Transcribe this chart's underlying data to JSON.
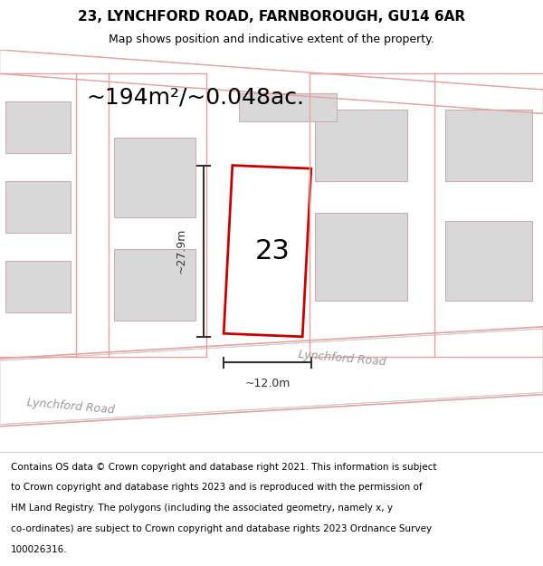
{
  "title": "23, LYNCHFORD ROAD, FARNBOROUGH, GU14 6AR",
  "subtitle": "Map shows position and indicative extent of the property.",
  "area_label": "~194m²/~0.048ac.",
  "property_number": "23",
  "dim_height": "~27.9m",
  "dim_width": "~12.0m",
  "road_label1": "Lynchford Road",
  "road_label2": "Lynchford Road",
  "footnote_lines": [
    "Contains OS data © Crown copyright and database right 2021. This information is subject",
    "to Crown copyright and database rights 2023 and is reproduced with the permission of",
    "HM Land Registry. The polygons (including the associated geometry, namely x, y",
    "co-ordinates) are subject to Crown copyright and database rights 2023 Ordnance Survey",
    "100026316."
  ],
  "outline_color": "#e8a0a0",
  "building_fill": "#d8d8d8",
  "building_edge": "#c8b0b0",
  "property_edge": "#cc0000",
  "dim_color": "#333333",
  "title_fontsize": 11,
  "subtitle_fontsize": 9,
  "area_fontsize": 18,
  "number_fontsize": 22,
  "footnote_fontsize": 7.5
}
